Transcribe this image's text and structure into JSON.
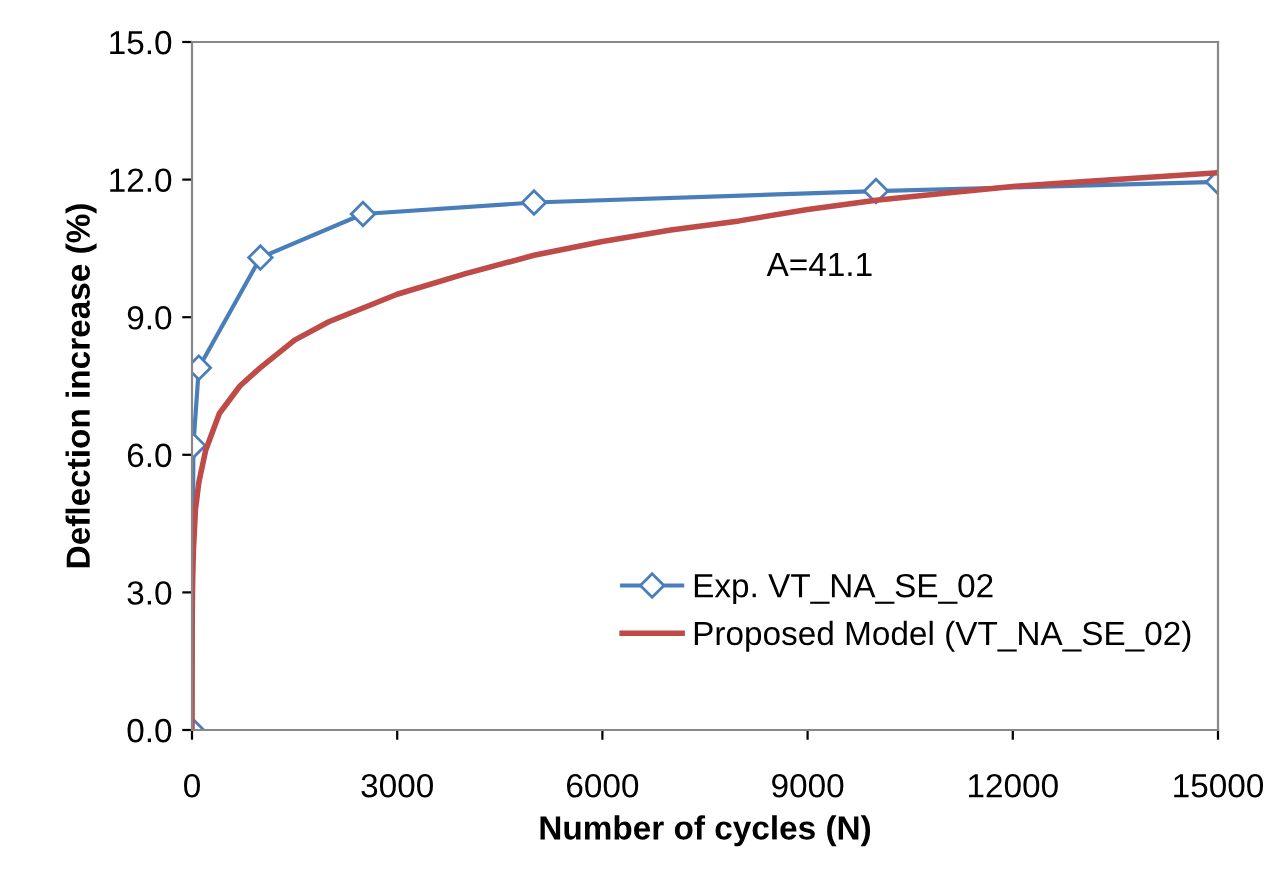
{
  "chart_data": {
    "type": "line",
    "xlabel": "Number of cycles (N)",
    "ylabel": "Deflection increase (%)",
    "xlim": [
      0,
      15000
    ],
    "xticks": [
      0,
      3000,
      6000,
      9000,
      12000,
      15000
    ],
    "ylim": [
      0,
      15
    ],
    "yticks": [
      {
        "value": 0,
        "label": "0.0"
      },
      {
        "value": 3,
        "label": "3.0"
      },
      {
        "value": 6,
        "label": "6.0"
      },
      {
        "value": 9,
        "label": "9.0"
      },
      {
        "value": 12,
        "label": "12.0"
      },
      {
        "value": 15,
        "label": "15.0"
      }
    ],
    "grid": false,
    "legend": "bottom",
    "annotations": [
      "A=41.1"
    ],
    "series": [
      {
        "name": "Exp. VT_NA_SE_02",
        "color": "#4a7ebb",
        "marker": "diamond",
        "x": [
          0,
          20,
          100,
          1000,
          2500,
          5000,
          10000,
          15000
        ],
        "values": [
          0,
          6.2,
          7.9,
          10.3,
          11.25,
          11.5,
          11.75,
          11.95
        ]
      },
      {
        "name": "Proposed Model (VT_NA_SE_02)",
        "color": "#be4b48",
        "marker": "none",
        "x": [
          0,
          2,
          5,
          10,
          20,
          50,
          100,
          200,
          400,
          700,
          1000,
          1500,
          2000,
          2500,
          3000,
          4000,
          5000,
          6000,
          7000,
          8000,
          9000,
          10000,
          11000,
          12000,
          13000,
          14000,
          15000
        ],
        "values": [
          0,
          2.2,
          2.8,
          3.3,
          3.9,
          4.8,
          5.4,
          6.1,
          6.9,
          7.5,
          7.9,
          8.5,
          8.9,
          9.2,
          9.5,
          9.95,
          10.35,
          10.65,
          10.9,
          11.1,
          11.35,
          11.55,
          11.7,
          11.85,
          11.95,
          12.05,
          12.15
        ]
      }
    ]
  }
}
